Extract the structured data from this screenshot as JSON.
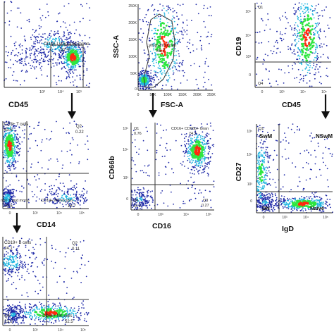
{
  "colors": {
    "low": "#1f2aa8",
    "mid": "#21b6e0",
    "high": "#2ee640",
    "peak": "#ff2a10",
    "axis": "#222222",
    "gate": "#333333",
    "arrow": "#111111"
  },
  "chart_data": [
    {
      "id": "p_cd45",
      "type": "scatter",
      "xlabel": "CD45",
      "ylabel": "",
      "x_ticks": [
        "10³",
        "10⁴",
        "10⁵"
      ],
      "y_ticks": [],
      "gates": [
        {
          "label": "CD45 Lymp and mono",
          "value": "97.5"
        }
      ],
      "populations": [
        {
          "name": "lymphocytes",
          "cx": 0.8,
          "cy": 0.35
        },
        {
          "name": "monocytes",
          "cx": 0.58,
          "cy": 0.5
        },
        {
          "name": "debris",
          "cx": 0.3,
          "cy": 0.35
        }
      ]
    },
    {
      "id": "p_fsc",
      "type": "scatter",
      "xlabel": "FSC-A",
      "ylabel": "SSC-A",
      "x_ticks": [
        "0",
        "50K",
        "100K",
        "150K",
        "200K",
        "250K"
      ],
      "y_ticks": [
        "0",
        "50K",
        "100K",
        "150K",
        "200K",
        "250K"
      ],
      "gates": [
        {
          "label": "Lymp and Gran",
          "value": "89.7"
        }
      ],
      "populations": [
        {
          "name": "granulocytes",
          "cx": 0.35,
          "cy": 0.52
        },
        {
          "name": "lymphocytes",
          "cx": 0.08,
          "cy": 0.12
        }
      ]
    },
    {
      "id": "p_cd19_cd45",
      "type": "scatter",
      "xlabel": "CD45",
      "ylabel": "CD19",
      "x_ticks": [
        "0",
        "10³",
        "10⁴",
        "10⁵"
      ],
      "y_ticks": [
        "0",
        "10³",
        "10⁴",
        "10⁵"
      ],
      "quadrants": [
        {
          "label": "Q1",
          "value": ""
        },
        {
          "label": "Q4",
          "value": ""
        }
      ],
      "populations": [
        {
          "name": "B cells",
          "cx": 0.68,
          "cy": 0.6
        }
      ]
    },
    {
      "id": "p_cd3_cd14",
      "type": "scatter",
      "xlabel": "CD14",
      "ylabel": "",
      "x_ticks": [
        "0",
        "10³",
        "10⁴",
        "10⁵"
      ],
      "y_ticks": [],
      "quadrants": [
        {
          "label": "CD3+ T cells",
          "value": "63.6"
        },
        {
          "label": "Q2",
          "value": "0.22"
        },
        {
          "label": "non T and mono",
          "value": "20.5"
        },
        {
          "label": "CD14+ Monocytes",
          "value": "15.7"
        }
      ],
      "populations": [
        {
          "name": "T cells",
          "cx": 0.08,
          "cy": 0.72
        },
        {
          "name": "non T",
          "cx": 0.05,
          "cy": 0.12
        },
        {
          "name": "monocytes",
          "cx": 0.75,
          "cy": 0.12
        }
      ]
    },
    {
      "id": "p_cd66b_cd16",
      "type": "scatter",
      "xlabel": "CD16",
      "ylabel": "CD66b",
      "x_ticks": [
        "0",
        "10³",
        "10⁴",
        "10⁵"
      ],
      "y_ticks": [
        "0",
        "10³",
        "10⁴",
        "10⁵"
      ],
      "quadrants": [
        {
          "label": "Q1",
          "value": "0.76"
        },
        {
          "label": "CD16+ CD66b+ Gran",
          "value": "74.7"
        },
        {
          "label": "Q4",
          "value": "24.3"
        },
        {
          "label": "Q3",
          "value": "0.27"
        }
      ],
      "populations": [
        {
          "name": "granulocytes",
          "cx": 0.8,
          "cy": 0.68
        },
        {
          "name": "other",
          "cx": 0.1,
          "cy": 0.12
        }
      ]
    },
    {
      "id": "p_cd27_igd",
      "type": "scatter",
      "xlabel": "IgD",
      "ylabel": "CD27",
      "x_ticks": [
        "0",
        "10³",
        "10⁴",
        "10⁵"
      ],
      "y_ticks": [
        "0",
        "10³",
        "10⁴",
        "10⁵"
      ],
      "quadrants": [
        {
          "label": "Q1",
          "value": ""
        },
        {
          "label": "SwM",
          "value": ""
        },
        {
          "label": "NSwM",
          "value": ""
        },
        {
          "label": "DN",
          "value": ""
        },
        {
          "label": "Naive",
          "value": ""
        }
      ],
      "populations": [
        {
          "name": "SwM",
          "cx": 0.06,
          "cy": 0.45
        },
        {
          "name": "DN",
          "cx": 0.12,
          "cy": 0.12
        },
        {
          "name": "Naive",
          "cx": 0.62,
          "cy": 0.1
        }
      ]
    },
    {
      "id": "p_cd19_cd56",
      "type": "scatter",
      "xlabel": "",
      "ylabel": "",
      "x_ticks": [
        "0",
        "10³",
        "10⁴",
        "10⁵"
      ],
      "y_ticks": [],
      "quadrants": [
        {
          "label": "CD19+ B cells",
          "value": "24.1"
        },
        {
          "label": "Q2",
          "value": "0.11"
        },
        {
          "label": "Q4",
          "value": "23.2"
        },
        {
          "label": "CD56+ NK cells",
          "value": "52.5"
        }
      ],
      "populations": [
        {
          "name": "B cells",
          "cx": 0.1,
          "cy": 0.72
        },
        {
          "name": "NK cells",
          "cx": 0.55,
          "cy": 0.14
        },
        {
          "name": "Q4",
          "cx": 0.12,
          "cy": 0.12
        }
      ]
    }
  ]
}
